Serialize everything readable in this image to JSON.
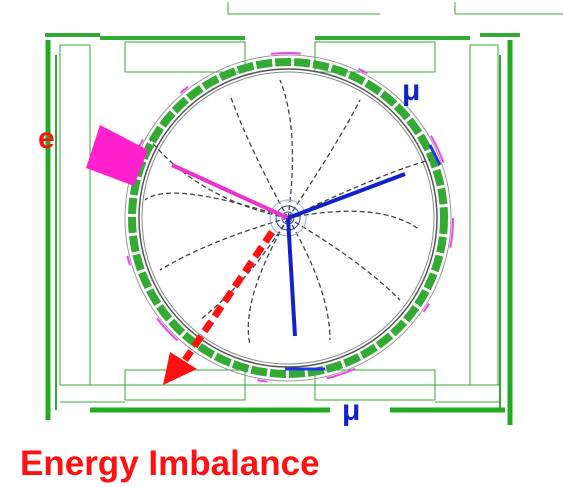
{
  "labels": {
    "electron": "e",
    "muon_upper": "μ",
    "muon_lower": "μ",
    "caption": "Energy Imbalance"
  }
}
